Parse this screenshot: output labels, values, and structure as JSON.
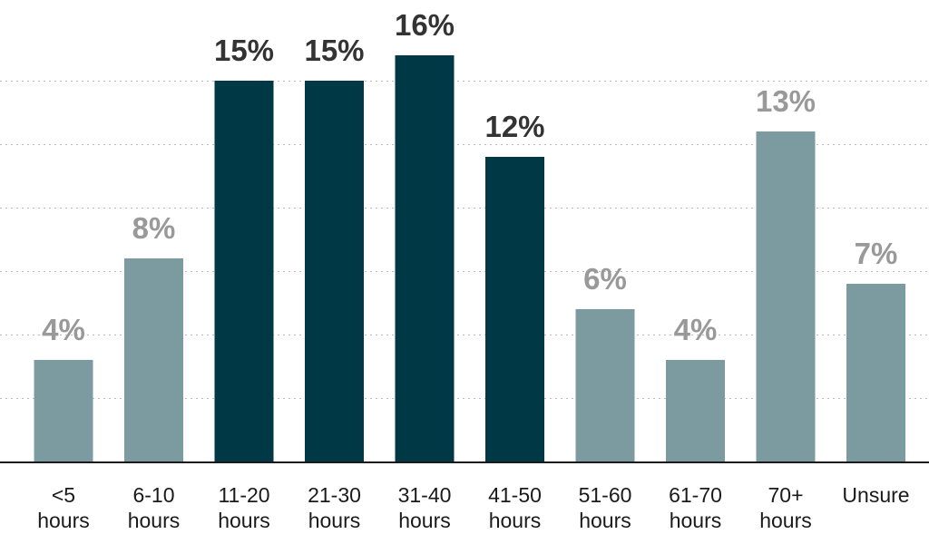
{
  "colors": {
    "highlight": "#003845",
    "muted": "#7c9ba1",
    "highlight_label": "#333333",
    "muted_label": "#999999"
  },
  "chart_data": {
    "type": "bar",
    "title": "",
    "xlabel": "",
    "ylabel": "",
    "ylim": [
      0,
      17.5
    ],
    "grid": true,
    "gridlines": [
      2.5,
      5,
      7.5,
      10,
      12.5,
      15
    ],
    "categories": [
      [
        "<5",
        "hours"
      ],
      [
        "6-10",
        "hours"
      ],
      [
        "11-20",
        "hours"
      ],
      [
        "21-30",
        "hours"
      ],
      [
        "31-40",
        "hours"
      ],
      [
        "41-50",
        "hours"
      ],
      [
        "51-60",
        "hours"
      ],
      [
        "61-70",
        "hours"
      ],
      [
        "70+",
        "hours"
      ],
      [
        "Unsure"
      ]
    ],
    "values": [
      4,
      8,
      15,
      15,
      16,
      12,
      6,
      4,
      13,
      7
    ],
    "value_labels": [
      "4%",
      "8%",
      "15%",
      "15%",
      "16%",
      "12%",
      "6%",
      "4%",
      "13%",
      "7%"
    ],
    "highlighted": [
      false,
      false,
      true,
      true,
      true,
      true,
      false,
      false,
      false,
      false
    ]
  }
}
